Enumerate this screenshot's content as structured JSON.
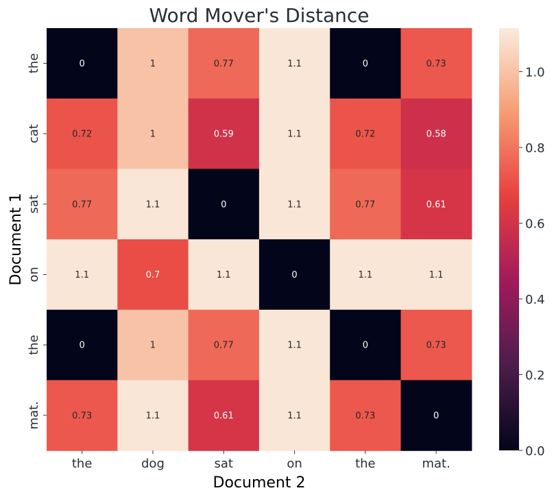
{
  "chart_data": {
    "type": "heatmap",
    "title": "Word Mover's Distance",
    "xlabel": "Document 2",
    "ylabel": "Document 1",
    "x_categories": [
      "the",
      "dog",
      "sat",
      "on",
      "the",
      "mat."
    ],
    "y_categories": [
      "the",
      "cat",
      "sat",
      "on",
      "the",
      "mat."
    ],
    "values": [
      [
        0,
        1.0,
        0.77,
        1.1,
        0,
        0.73
      ],
      [
        0.72,
        1.0,
        0.59,
        1.1,
        0.72,
        0.58
      ],
      [
        0.77,
        1.1,
        0,
        1.1,
        0.77,
        0.61
      ],
      [
        1.1,
        0.7,
        1.1,
        0,
        1.1,
        1.1
      ],
      [
        0,
        1.0,
        0.77,
        1.1,
        0,
        0.73
      ],
      [
        0.73,
        1.1,
        0.61,
        1.1,
        0.73,
        0
      ]
    ],
    "annotations": [
      [
        "0",
        "1",
        "0.77",
        "1.1",
        "0",
        "0.73"
      ],
      [
        "0.72",
        "1",
        "0.59",
        "1.1",
        "0.72",
        "0.58"
      ],
      [
        "0.77",
        "1.1",
        "0",
        "1.1",
        "0.77",
        "0.61"
      ],
      [
        "1.1",
        "0.7",
        "1.1",
        "0",
        "1.1",
        "1.1"
      ],
      [
        "0",
        "1",
        "0.77",
        "1.1",
        "0",
        "0.73"
      ],
      [
        "0.73",
        "1.1",
        "0.61",
        "1.1",
        "0.73",
        "0"
      ]
    ],
    "colorbar": {
      "vmin": 0,
      "vmax": 1.115,
      "ticks": [
        "0.0",
        "0.2",
        "0.4",
        "0.6",
        "0.8",
        "1.0"
      ],
      "colormap": "rocket",
      "colormap_stops": [
        "#03051a",
        "#4c1d4b",
        "#a11a5b",
        "#e83f3f",
        "#f69c73",
        "#faebdd"
      ]
    },
    "grid": false,
    "legend": "colorbar-right"
  }
}
